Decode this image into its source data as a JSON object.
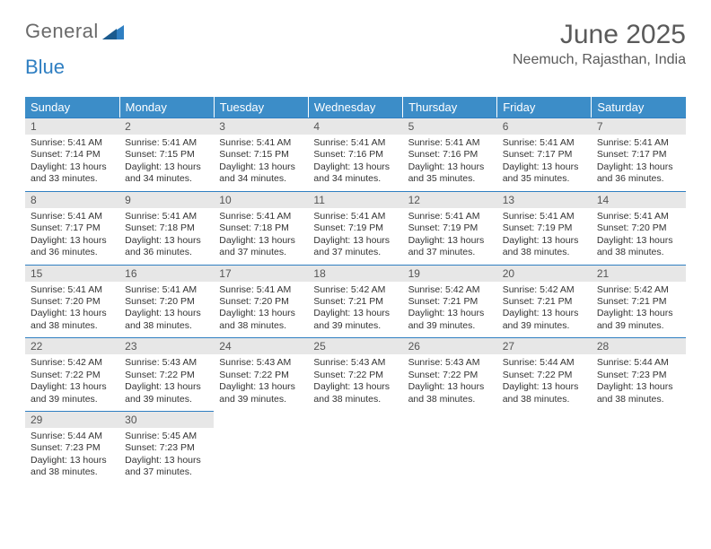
{
  "logo": {
    "text1": "General",
    "text2": "Blue"
  },
  "title": "June 2025",
  "location": "Neemuch, Rajasthan, India",
  "header_color": "#3c8dc8",
  "border_color": "#2f7fc2",
  "daybar_color": "#e7e7e7",
  "weekdays": [
    "Sunday",
    "Monday",
    "Tuesday",
    "Wednesday",
    "Thursday",
    "Friday",
    "Saturday"
  ],
  "days": [
    {
      "n": "1",
      "sr": "5:41 AM",
      "ss": "7:14 PM",
      "dlh": "13",
      "dlm": "33"
    },
    {
      "n": "2",
      "sr": "5:41 AM",
      "ss": "7:15 PM",
      "dlh": "13",
      "dlm": "34"
    },
    {
      "n": "3",
      "sr": "5:41 AM",
      "ss": "7:15 PM",
      "dlh": "13",
      "dlm": "34"
    },
    {
      "n": "4",
      "sr": "5:41 AM",
      "ss": "7:16 PM",
      "dlh": "13",
      "dlm": "34"
    },
    {
      "n": "5",
      "sr": "5:41 AM",
      "ss": "7:16 PM",
      "dlh": "13",
      "dlm": "35"
    },
    {
      "n": "6",
      "sr": "5:41 AM",
      "ss": "7:17 PM",
      "dlh": "13",
      "dlm": "35"
    },
    {
      "n": "7",
      "sr": "5:41 AM",
      "ss": "7:17 PM",
      "dlh": "13",
      "dlm": "36"
    },
    {
      "n": "8",
      "sr": "5:41 AM",
      "ss": "7:17 PM",
      "dlh": "13",
      "dlm": "36"
    },
    {
      "n": "9",
      "sr": "5:41 AM",
      "ss": "7:18 PM",
      "dlh": "13",
      "dlm": "36"
    },
    {
      "n": "10",
      "sr": "5:41 AM",
      "ss": "7:18 PM",
      "dlh": "13",
      "dlm": "37"
    },
    {
      "n": "11",
      "sr": "5:41 AM",
      "ss": "7:19 PM",
      "dlh": "13",
      "dlm": "37"
    },
    {
      "n": "12",
      "sr": "5:41 AM",
      "ss": "7:19 PM",
      "dlh": "13",
      "dlm": "37"
    },
    {
      "n": "13",
      "sr": "5:41 AM",
      "ss": "7:19 PM",
      "dlh": "13",
      "dlm": "38"
    },
    {
      "n": "14",
      "sr": "5:41 AM",
      "ss": "7:20 PM",
      "dlh": "13",
      "dlm": "38"
    },
    {
      "n": "15",
      "sr": "5:41 AM",
      "ss": "7:20 PM",
      "dlh": "13",
      "dlm": "38"
    },
    {
      "n": "16",
      "sr": "5:41 AM",
      "ss": "7:20 PM",
      "dlh": "13",
      "dlm": "38"
    },
    {
      "n": "17",
      "sr": "5:41 AM",
      "ss": "7:20 PM",
      "dlh": "13",
      "dlm": "38"
    },
    {
      "n": "18",
      "sr": "5:42 AM",
      "ss": "7:21 PM",
      "dlh": "13",
      "dlm": "39"
    },
    {
      "n": "19",
      "sr": "5:42 AM",
      "ss": "7:21 PM",
      "dlh": "13",
      "dlm": "39"
    },
    {
      "n": "20",
      "sr": "5:42 AM",
      "ss": "7:21 PM",
      "dlh": "13",
      "dlm": "39"
    },
    {
      "n": "21",
      "sr": "5:42 AM",
      "ss": "7:21 PM",
      "dlh": "13",
      "dlm": "39"
    },
    {
      "n": "22",
      "sr": "5:42 AM",
      "ss": "7:22 PM",
      "dlh": "13",
      "dlm": "39"
    },
    {
      "n": "23",
      "sr": "5:43 AM",
      "ss": "7:22 PM",
      "dlh": "13",
      "dlm": "39"
    },
    {
      "n": "24",
      "sr": "5:43 AM",
      "ss": "7:22 PM",
      "dlh": "13",
      "dlm": "39"
    },
    {
      "n": "25",
      "sr": "5:43 AM",
      "ss": "7:22 PM",
      "dlh": "13",
      "dlm": "38"
    },
    {
      "n": "26",
      "sr": "5:43 AM",
      "ss": "7:22 PM",
      "dlh": "13",
      "dlm": "38"
    },
    {
      "n": "27",
      "sr": "5:44 AM",
      "ss": "7:22 PM",
      "dlh": "13",
      "dlm": "38"
    },
    {
      "n": "28",
      "sr": "5:44 AM",
      "ss": "7:23 PM",
      "dlh": "13",
      "dlm": "38"
    },
    {
      "n": "29",
      "sr": "5:44 AM",
      "ss": "7:23 PM",
      "dlh": "13",
      "dlm": "38"
    },
    {
      "n": "30",
      "sr": "5:45 AM",
      "ss": "7:23 PM",
      "dlh": "13",
      "dlm": "37"
    }
  ]
}
